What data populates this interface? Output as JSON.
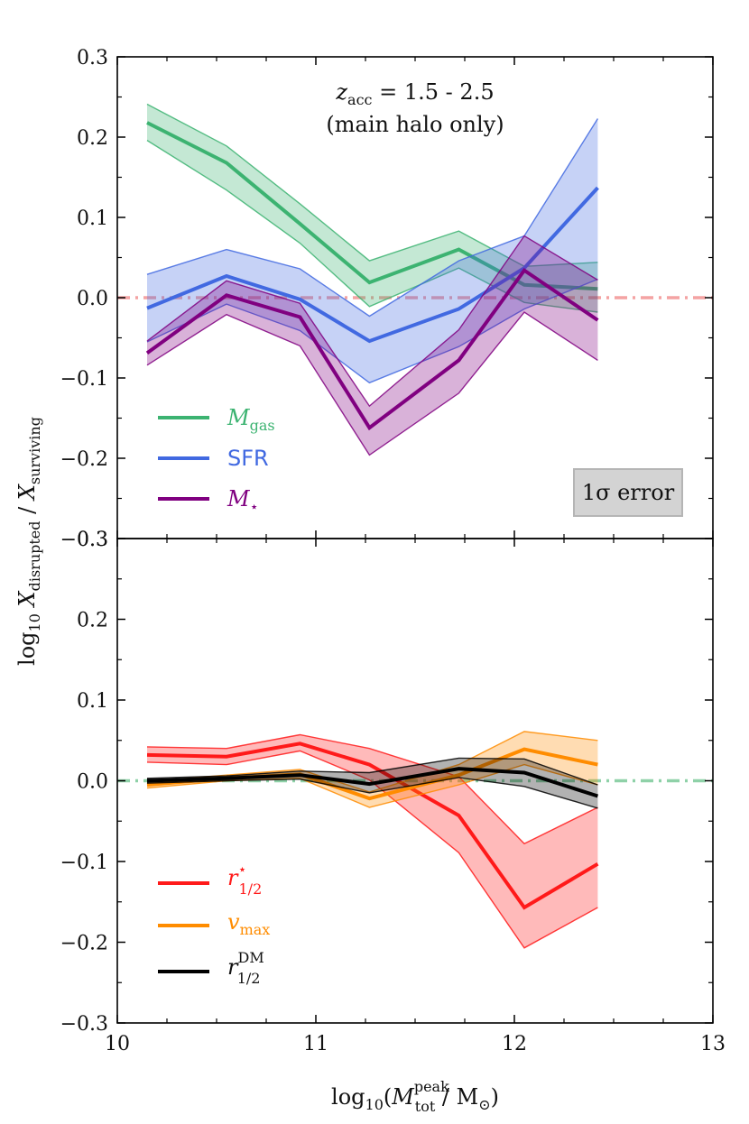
{
  "chart_data": {
    "type": "line",
    "xlabel": "log10(M_tot^peak / M_sun)",
    "ylabel": "log10 X_disrupted / X_surviving",
    "xlim": [
      10,
      13
    ],
    "ylim": [
      -0.3,
      0.3
    ],
    "x_ticks": [
      "10",
      "11",
      "12",
      "13"
    ],
    "y_ticks": [
      "0.3",
      "0.2",
      "0.1",
      "0.0",
      "−0.1",
      "−0.2",
      "−0.3"
    ],
    "panels": [
      {
        "name": "top",
        "annotation_line1": "z_acc = 1.5 - 2.5",
        "annotation_line2": "(main halo only)",
        "error_box": "1σ error",
        "reference_line": {
          "y": 0.0,
          "color": "#f4a3a3"
        },
        "series": [
          {
            "name": "M_gas",
            "color": "#3cb371",
            "x": [
              10.15,
              10.55,
              10.92,
              11.27,
              11.72,
              12.05,
              12.42
            ],
            "y": [
              0.218,
              0.168,
              0.092,
              0.019,
              0.06,
              0.016,
              0.011
            ],
            "upper": [
              0.241,
              0.189,
              0.117,
              0.046,
              0.083,
              0.039,
              0.044
            ],
            "lower": [
              0.196,
              0.134,
              0.068,
              -0.011,
              0.037,
              -0.006,
              -0.018
            ]
          },
          {
            "name": "SFR",
            "color": "#4169e1",
            "x": [
              10.15,
              10.55,
              10.92,
              11.27,
              11.72,
              12.05,
              12.42
            ],
            "y": [
              -0.013,
              0.027,
              -0.002,
              -0.054,
              -0.014,
              0.037,
              0.137
            ],
            "upper": [
              0.029,
              0.06,
              0.036,
              -0.023,
              0.046,
              0.077,
              0.223
            ],
            "lower": [
              -0.055,
              -0.008,
              -0.041,
              -0.106,
              -0.061,
              -0.014,
              0.023
            ]
          },
          {
            "name": "M_star",
            "color": "#800080",
            "x": [
              10.15,
              10.55,
              10.92,
              11.27,
              11.72,
              12.05,
              12.42
            ],
            "y": [
              -0.069,
              0.003,
              -0.024,
              -0.162,
              -0.078,
              0.034,
              -0.028
            ],
            "upper": [
              -0.054,
              0.021,
              -0.007,
              -0.135,
              -0.04,
              0.077,
              0.022
            ],
            "lower": [
              -0.084,
              -0.021,
              -0.06,
              -0.196,
              -0.119,
              -0.018,
              -0.078
            ]
          }
        ]
      },
      {
        "name": "bottom",
        "reference_line": {
          "y": 0.0,
          "color": "#8fd1a8"
        },
        "series": [
          {
            "name": "r_1/2^star",
            "color": "#ff1a1a",
            "x": [
              10.15,
              10.55,
              10.92,
              11.27,
              11.72,
              12.05,
              12.42
            ],
            "y": [
              0.032,
              0.03,
              0.046,
              0.02,
              -0.043,
              -0.157,
              -0.103
            ],
            "upper": [
              0.042,
              0.04,
              0.057,
              0.04,
              0.005,
              -0.078,
              -0.033
            ],
            "lower": [
              0.023,
              0.02,
              0.037,
              0.001,
              -0.089,
              -0.207,
              -0.157
            ]
          },
          {
            "name": "v_max",
            "color": "#ff8c00",
            "x": [
              10.15,
              10.55,
              10.92,
              11.27,
              11.72,
              12.05,
              12.42
            ],
            "y": [
              -0.005,
              0.003,
              0.008,
              -0.022,
              0.007,
              0.039,
              0.02
            ],
            "upper": [
              -0.001,
              0.007,
              0.014,
              -0.014,
              0.02,
              0.061,
              0.05
            ],
            "lower": [
              -0.009,
              0.0,
              0.003,
              -0.033,
              -0.005,
              0.02,
              -0.005
            ]
          },
          {
            "name": "r_1/2^DM",
            "color": "#000000",
            "x": [
              10.15,
              10.55,
              10.92,
              11.27,
              11.72,
              12.05,
              12.42
            ],
            "y": [
              0.0,
              0.003,
              0.007,
              -0.004,
              0.015,
              0.01,
              -0.019
            ],
            "upper": [
              0.003,
              0.006,
              0.012,
              0.01,
              0.028,
              0.027,
              -0.005
            ],
            "lower": [
              -0.003,
              0.0,
              0.002,
              -0.015,
              0.004,
              -0.007,
              -0.034
            ]
          }
        ]
      }
    ]
  }
}
